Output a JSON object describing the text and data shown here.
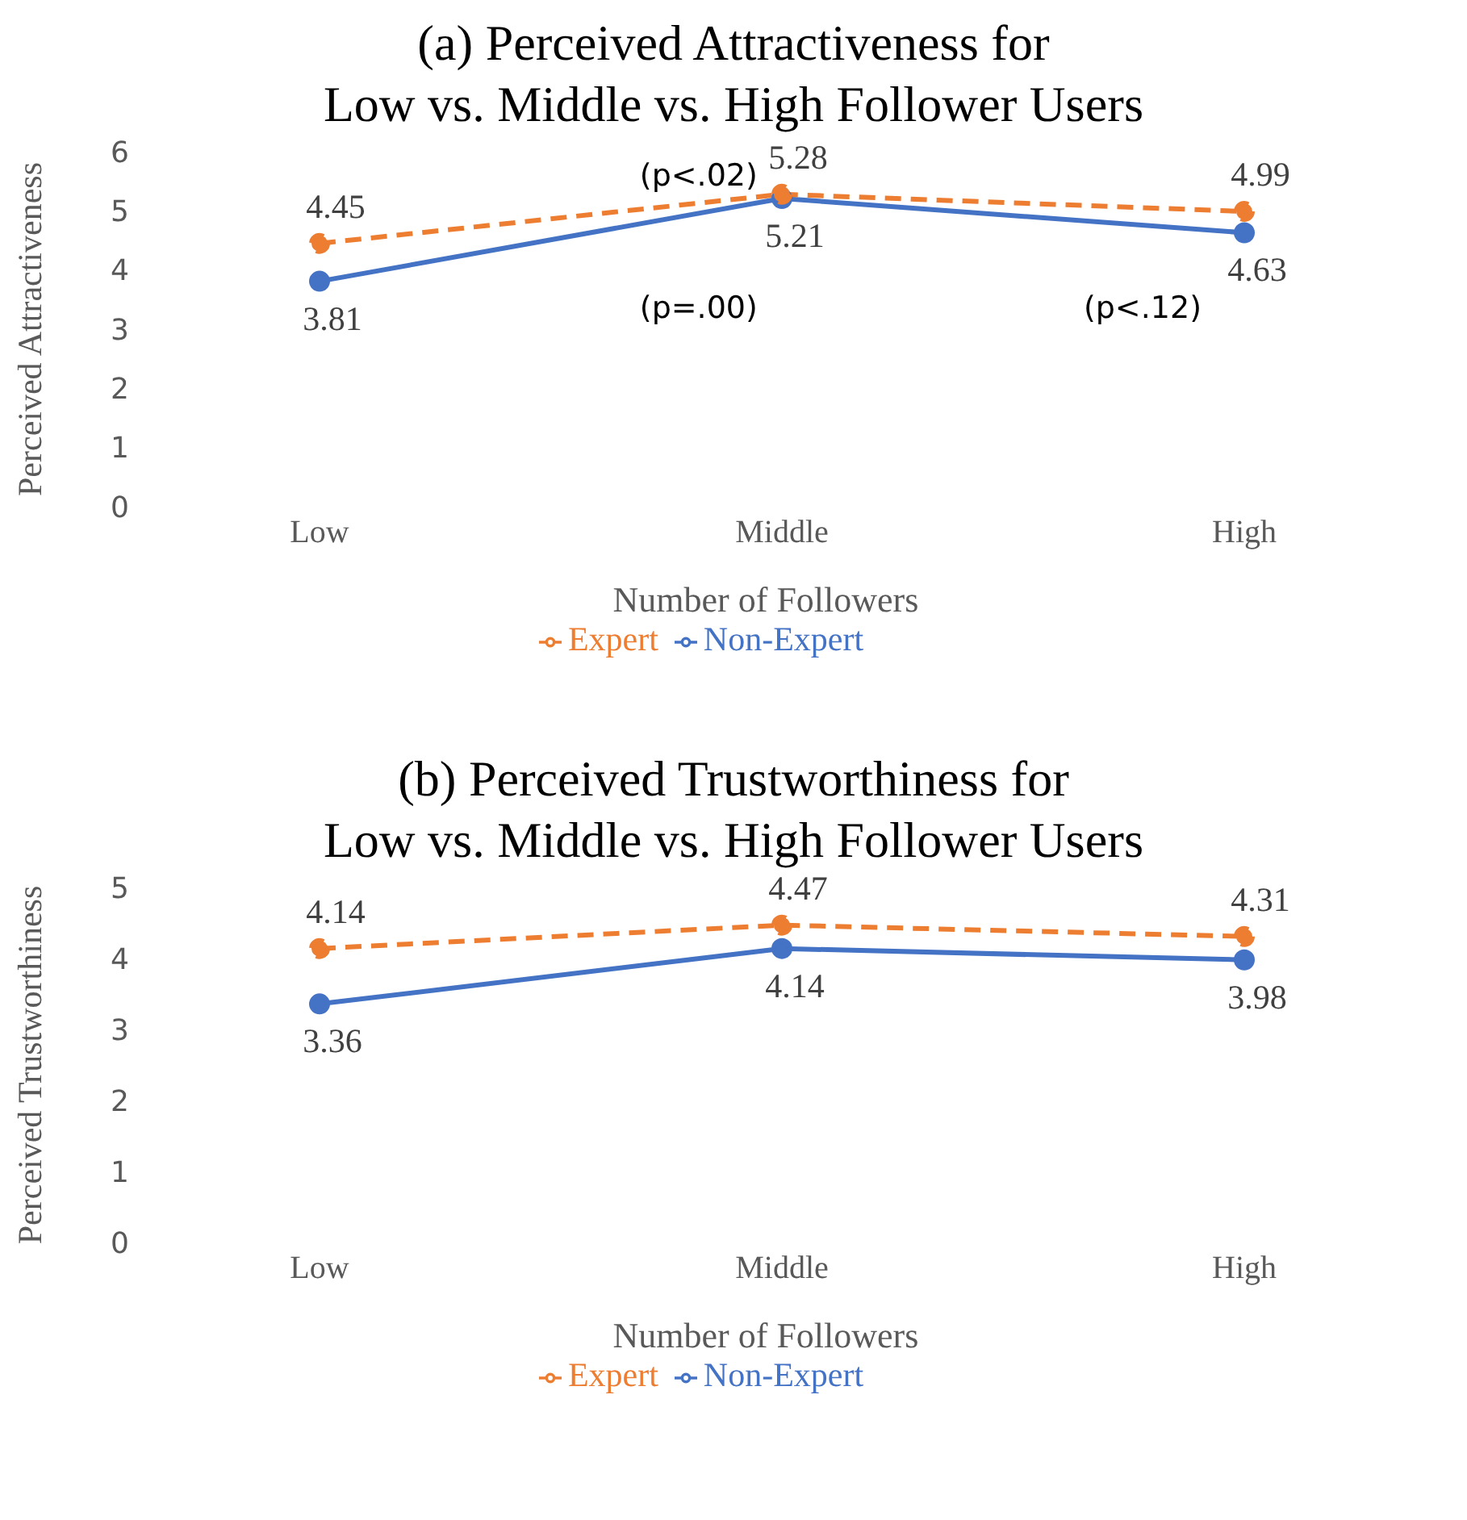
{
  "chart_data": [
    {
      "type": "line",
      "title": "(a) Perceived Attractiveness for\nLow vs. Middle vs. High Follower Users",
      "xlabel": "Number of Followers",
      "ylabel": "Perceived Attractiveness",
      "categories": [
        "Low",
        "Middle",
        "High"
      ],
      "series": [
        {
          "name": "Non-Expert",
          "color": "#4472c4",
          "values": [
            3.81,
            5.21,
            4.63
          ],
          "line_style": "solid"
        },
        {
          "name": "Expert",
          "color": "#ed7d31",
          "values": [
            4.45,
            5.28,
            4.99
          ],
          "line_style": "dashed"
        }
      ],
      "ylim": [
        0,
        6
      ],
      "yticks": [
        0,
        1,
        2,
        3,
        4,
        5,
        6
      ],
      "grid": false,
      "legend": "bottom",
      "marker": "circle",
      "data_labels": true,
      "annotations": [
        "(p<.02)",
        "(p=.00)",
        "(p<.12)"
      ]
    },
    {
      "type": "line",
      "title": "(b) Perceived Trustworthiness for\nLow vs. Middle vs. High Follower Users",
      "xlabel": "Number of Followers",
      "ylabel": "Perceived Trustworthiness",
      "categories": [
        "Low",
        "Middle",
        "High"
      ],
      "series": [
        {
          "name": "Non-Expert",
          "color": "#4472c4",
          "values": [
            3.36,
            4.14,
            3.98
          ],
          "line_style": "solid"
        },
        {
          "name": "Expert",
          "color": "#ed7d31",
          "values": [
            4.14,
            4.47,
            4.31
          ],
          "line_style": "dashed"
        }
      ],
      "ylim": [
        0,
        5
      ],
      "yticks": [
        0,
        1,
        2,
        3,
        4,
        5
      ],
      "grid": false,
      "legend": "bottom",
      "marker": "circle",
      "data_labels": true
    }
  ]
}
